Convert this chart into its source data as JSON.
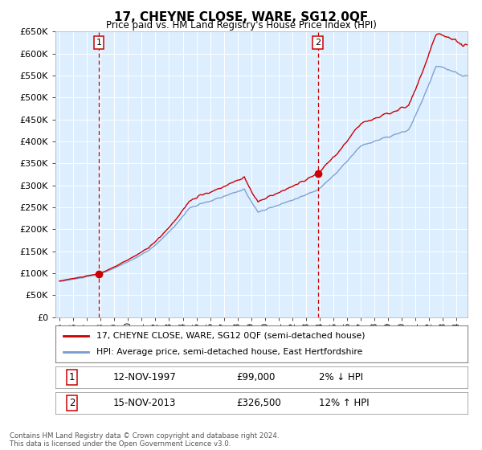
{
  "title": "17, CHEYNE CLOSE, WARE, SG12 0QF",
  "subtitle": "Price paid vs. HM Land Registry's House Price Index (HPI)",
  "legend_line1": "17, CHEYNE CLOSE, WARE, SG12 0QF (semi-detached house)",
  "legend_line2": "HPI: Average price, semi-detached house, East Hertfordshire",
  "footnote": "Contains HM Land Registry data © Crown copyright and database right 2024.\nThis data is licensed under the Open Government Licence v3.0.",
  "sale1_label": "1",
  "sale1_date": "12-NOV-1997",
  "sale1_price": "£99,000",
  "sale1_pct": "2% ↓ HPI",
  "sale1_year": 1997.87,
  "sale1_value": 99000,
  "sale2_label": "2",
  "sale2_date": "15-NOV-2013",
  "sale2_price": "£326,500",
  "sale2_pct": "12% ↑ HPI",
  "sale2_year": 2013.87,
  "sale2_value": 326500,
  "ylim": [
    0,
    650000
  ],
  "yticks": [
    0,
    50000,
    100000,
    150000,
    200000,
    250000,
    300000,
    350000,
    400000,
    450000,
    500000,
    550000,
    600000,
    650000
  ],
  "hpi_color": "#7799cc",
  "price_color": "#cc0000",
  "vline_color": "#cc0000",
  "bg_color": "#ddeeff",
  "xlim_left": 1994.7,
  "xlim_right": 2024.8
}
